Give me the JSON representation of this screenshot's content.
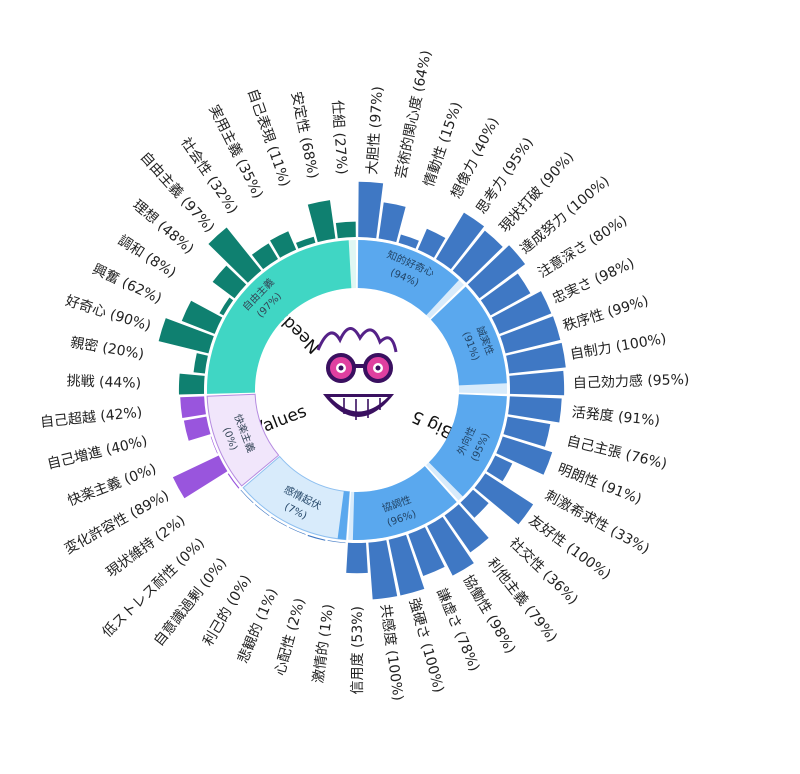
{
  "chart_data": {
    "type": "sunburst",
    "center_icon": "smiling-face-with-sunglasses-icon",
    "groups": [
      {
        "name": "Big 5",
        "color": "#5aa8ee",
        "categories": [
          {
            "name": "知的好奇心",
            "value": 94,
            "traits": [
              {
                "name": "大胆性",
                "value": 97
              },
              {
                "name": "芸術的関心度",
                "value": 64
              },
              {
                "name": "情動性",
                "value": 15
              },
              {
                "name": "想像力",
                "value": 40
              },
              {
                "name": "思考力",
                "value": 95
              },
              {
                "name": "現状打破",
                "value": 90
              }
            ]
          },
          {
            "name": "誠実性",
            "value": 91,
            "traits": [
              {
                "name": "達成努力",
                "value": 100
              },
              {
                "name": "注意深さ",
                "value": 80
              },
              {
                "name": "忠実さ",
                "value": 98
              },
              {
                "name": "秩序性",
                "value": 99
              },
              {
                "name": "自制力",
                "value": 100
              },
              {
                "name": "自己効力感",
                "value": 95
              }
            ]
          },
          {
            "name": "外向性",
            "value": 95,
            "traits": [
              {
                "name": "活発度",
                "value": 91
              },
              {
                "name": "自己主張",
                "value": 76
              },
              {
                "name": "明朗性",
                "value": 91
              },
              {
                "name": "刺激希求性",
                "value": 33
              },
              {
                "name": "友好性",
                "value": 100
              },
              {
                "name": "社交性",
                "value": 36
              }
            ]
          },
          {
            "name": "協調性",
            "value": 96,
            "traits": [
              {
                "name": "利他主義",
                "value": 79
              },
              {
                "name": "協働性",
                "value": 98
              },
              {
                "name": "謙虚さ",
                "value": 78
              },
              {
                "name": "強硬さ",
                "value": 100
              },
              {
                "name": "共感度",
                "value": 100
              },
              {
                "name": "信用度",
                "value": 53
              }
            ]
          },
          {
            "name": "感情起伏",
            "value": 7,
            "traits": [
              {
                "name": "激情的",
                "value": 1
              },
              {
                "name": "心配性",
                "value": 2
              },
              {
                "name": "悲観的",
                "value": 1
              },
              {
                "name": "利己的",
                "value": 0
              },
              {
                "name": "自意識過剰",
                "value": 0
              },
              {
                "name": "低ストレス耐性",
                "value": 0
              }
            ]
          }
        ]
      },
      {
        "name": "Values",
        "color": "#9955dd",
        "categories": [
          {
            "name": "快楽主義",
            "value": 0,
            "traits": [
              {
                "name": "現状維持",
                "value": 2
              },
              {
                "name": "変化許容性",
                "value": 89
              },
              {
                "name": "快楽主義",
                "value": 0
              },
              {
                "name": "自己増進",
                "value": 40
              },
              {
                "name": "自己超越",
                "value": 42
              }
            ]
          }
        ]
      },
      {
        "name": "Needs",
        "color": "#1aa080",
        "categories": [
          {
            "name": "自由主義",
            "value": 97,
            "traits": [
              {
                "name": "挑戦",
                "value": 44
              },
              {
                "name": "親密",
                "value": 20
              },
              {
                "name": "好奇心",
                "value": 90
              },
              {
                "name": "興奮",
                "value": 62
              },
              {
                "name": "調和",
                "value": 8
              },
              {
                "name": "理想",
                "value": 48
              },
              {
                "name": "自由主義",
                "value": 97
              },
              {
                "name": "社会性",
                "value": 32
              },
              {
                "name": "実用主義",
                "value": 35
              },
              {
                "name": "自己表現",
                "value": 11
              },
              {
                "name": "安定性",
                "value": 68
              },
              {
                "name": "仕組",
                "value": 27
              }
            ]
          }
        ]
      }
    ]
  }
}
